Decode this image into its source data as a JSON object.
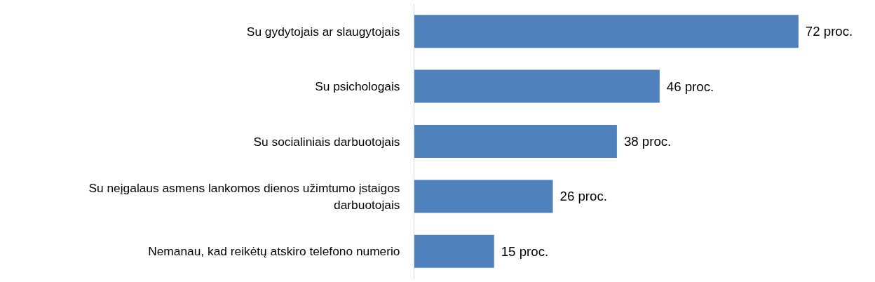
{
  "chart_data": {
    "type": "bar",
    "orientation": "horizontal",
    "categories": [
      "Su gydytojais ar slaugytojais",
      "Su psichologais",
      "Su socialiniais darbuotojais",
      "Su neįgalaus asmens lankomos dienos užimtumo įstaigos darbuotojais",
      "Nemanau, kad reikėtų atskiro telefono numerio"
    ],
    "values": [
      72,
      46,
      38,
      26,
      15
    ],
    "value_labels": [
      "72 proc.",
      "46 proc.",
      "38 proc.",
      "26 proc.",
      "15 proc."
    ],
    "color": "#4f81bd",
    "grid": false
  }
}
